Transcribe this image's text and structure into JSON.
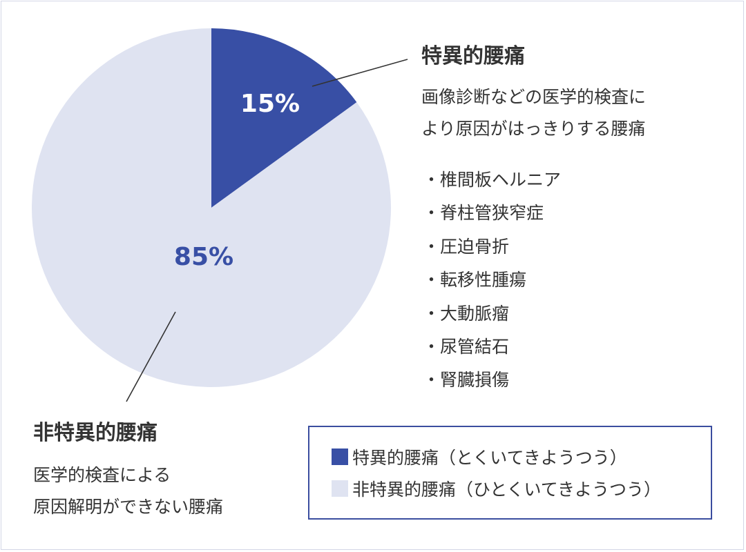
{
  "chart_data": {
    "type": "pie",
    "slices": [
      {
        "label": "特異的腰痛",
        "value": 15,
        "display": "15%",
        "color": "#384fa5",
        "label_color": "#ffffff"
      },
      {
        "label": "非特異的腰痛",
        "value": 85,
        "display": "85%",
        "color": "#dfe3f1",
        "label_color": "#384fa5"
      }
    ],
    "legend": {
      "position": "bottom-right",
      "entries": [
        {
          "label": "特異的腰痛（とくいてきようつう）",
          "color": "#384fa5"
        },
        {
          "label": "非特異的腰痛（ひとくいてきようつう）",
          "color": "#dfe3f1"
        }
      ]
    },
    "annotations": {
      "specific": {
        "title": "特異的腰痛",
        "description": [
          "画像診断などの医学的検査に",
          "より原因がはっきりする腰痛"
        ],
        "examples": [
          "椎間板ヘルニア",
          "脊柱管狭窄症",
          "圧迫骨折",
          "転移性腫瘍",
          "大動脈瘤",
          "尿管結石",
          "腎臓損傷"
        ]
      },
      "nonspecific": {
        "title": "非特異的腰痛",
        "description": [
          "医学的検査による",
          "原因解明ができない腰痛"
        ]
      }
    }
  }
}
